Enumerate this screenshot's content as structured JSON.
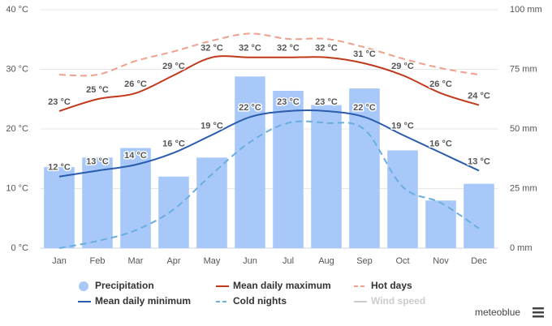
{
  "chart_data": {
    "type": "combo",
    "categories": [
      "Jan",
      "Feb",
      "Mar",
      "Apr",
      "May",
      "Jun",
      "Jul",
      "Aug",
      "Sep",
      "Oct",
      "Nov",
      "Dec"
    ],
    "ylim": [
      0,
      40
    ],
    "yticks": [
      {
        "value": 0,
        "label": "0 °C"
      },
      {
        "value": 10,
        "label": "10 °C"
      },
      {
        "value": 20,
        "label": "20 °C"
      },
      {
        "value": 30,
        "label": "30 °C"
      },
      {
        "value": 40,
        "label": "40 °C"
      }
    ],
    "y2lim": [
      0,
      100
    ],
    "y2ticks": [
      {
        "value": 0,
        "label": "0 mm"
      },
      {
        "value": 25,
        "label": "25 mm"
      },
      {
        "value": 50,
        "label": "50 mm"
      },
      {
        "value": 75,
        "label": "75 mm"
      },
      {
        "value": 100,
        "label": "100 mm"
      }
    ],
    "grid": true,
    "series": [
      {
        "name": "Precipitation",
        "type": "bar",
        "axis": "y2",
        "color": "#a8c8fa",
        "values": [
          34,
          38,
          42,
          30,
          38,
          72,
          66,
          60,
          67,
          41,
          20,
          27
        ]
      },
      {
        "name": "Mean daily maximum",
        "type": "line",
        "color": "#c0391b",
        "label_color": "#8b2a0a",
        "values": [
          23,
          25,
          26,
          29,
          32,
          32,
          32,
          32,
          31,
          29,
          26,
          24
        ],
        "value_labels": [
          "23 °C",
          "25 °C",
          "26 °C",
          "29 °C",
          "32 °C",
          "32 °C",
          "32 °C",
          "32 °C",
          "31 °C",
          "29 °C",
          "26 °C",
          "24 °C"
        ]
      },
      {
        "name": "Hot days",
        "type": "line",
        "dashed": true,
        "color": "#f0a08c",
        "values": [
          29.1,
          29.1,
          31.4,
          33,
          34.8,
          36,
          35.1,
          35.1,
          33.7,
          31.8,
          30.2,
          29.1
        ]
      },
      {
        "name": "Mean daily minimum",
        "type": "line",
        "color": "#2a5cab",
        "label_color": "#1f4a8c",
        "values": [
          12,
          13,
          14,
          16,
          19,
          22,
          23,
          23,
          22,
          19,
          16,
          13
        ],
        "value_labels": [
          "12 °C",
          "13 °C",
          "14 °C",
          "16 °C",
          "19 °C",
          "22 °C",
          "23 °C",
          "23 °C",
          "22 °C",
          "19 °C",
          "16 °C",
          "13 °C"
        ]
      },
      {
        "name": "Cold nights",
        "type": "line",
        "dashed": true,
        "color": "#6aaee0",
        "values": [
          0,
          1.2,
          3,
          6.5,
          12.4,
          17.8,
          21,
          21,
          19.9,
          10.3,
          7.6,
          3.3
        ]
      },
      {
        "name": "Wind speed",
        "type": "line",
        "visible": false,
        "color": "#cccccc"
      }
    ],
    "brand": "meteoblue"
  }
}
